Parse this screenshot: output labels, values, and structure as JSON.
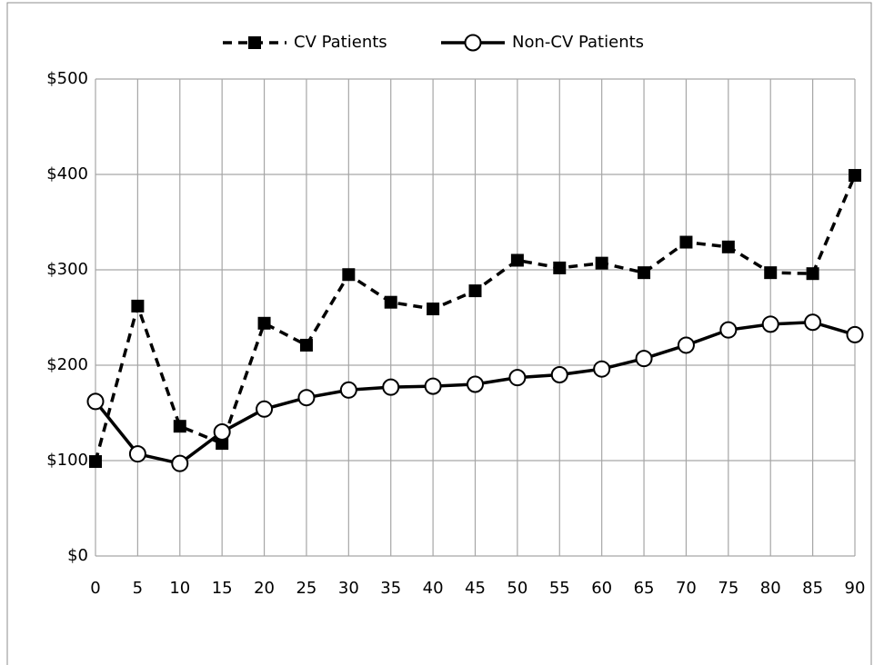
{
  "chart_data": {
    "type": "line",
    "x": [
      0,
      5,
      10,
      15,
      20,
      25,
      30,
      35,
      40,
      45,
      50,
      55,
      60,
      65,
      70,
      75,
      80,
      85,
      90
    ],
    "series": [
      {
        "name": "CV Patients",
        "color": "#000000",
        "line_style": "dashed",
        "marker": "square",
        "values": [
          99,
          262,
          136,
          118,
          244,
          221,
          295,
          266,
          259,
          278,
          310,
          302,
          307,
          297,
          329,
          324,
          297,
          296,
          399
        ]
      },
      {
        "name": "Non-CV Patients",
        "color": "#000000",
        "line_style": "solid",
        "marker": "circle",
        "values": [
          162,
          107,
          97,
          130,
          154,
          166,
          174,
          177,
          178,
          180,
          187,
          190,
          196,
          207,
          221,
          237,
          243,
          245,
          232
        ]
      }
    ],
    "xlim": [
      0,
      90
    ],
    "xticks": [
      0,
      5,
      10,
      15,
      20,
      25,
      30,
      35,
      40,
      45,
      50,
      55,
      60,
      65,
      70,
      75,
      80,
      85,
      90
    ],
    "ylim": [
      0,
      500
    ],
    "yticks": [
      {
        "value": 0,
        "label": "$0"
      },
      {
        "value": 100,
        "label": "$100"
      },
      {
        "value": 200,
        "label": "$200"
      },
      {
        "value": 300,
        "label": "$300"
      },
      {
        "value": 400,
        "label": "$400"
      },
      {
        "value": 500,
        "label": "$500"
      }
    ],
    "grid": true,
    "legend": "top"
  }
}
